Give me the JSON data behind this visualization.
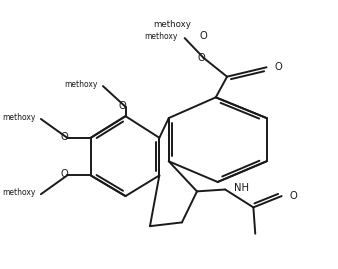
{
  "background": "#ffffff",
  "line_color": "#1a1a1a",
  "line_width": 1.4,
  "figsize": [
    3.38,
    2.69
  ],
  "dpi": 100,
  "xlim": [
    0,
    338
  ],
  "ylim": [
    0,
    269
  ]
}
